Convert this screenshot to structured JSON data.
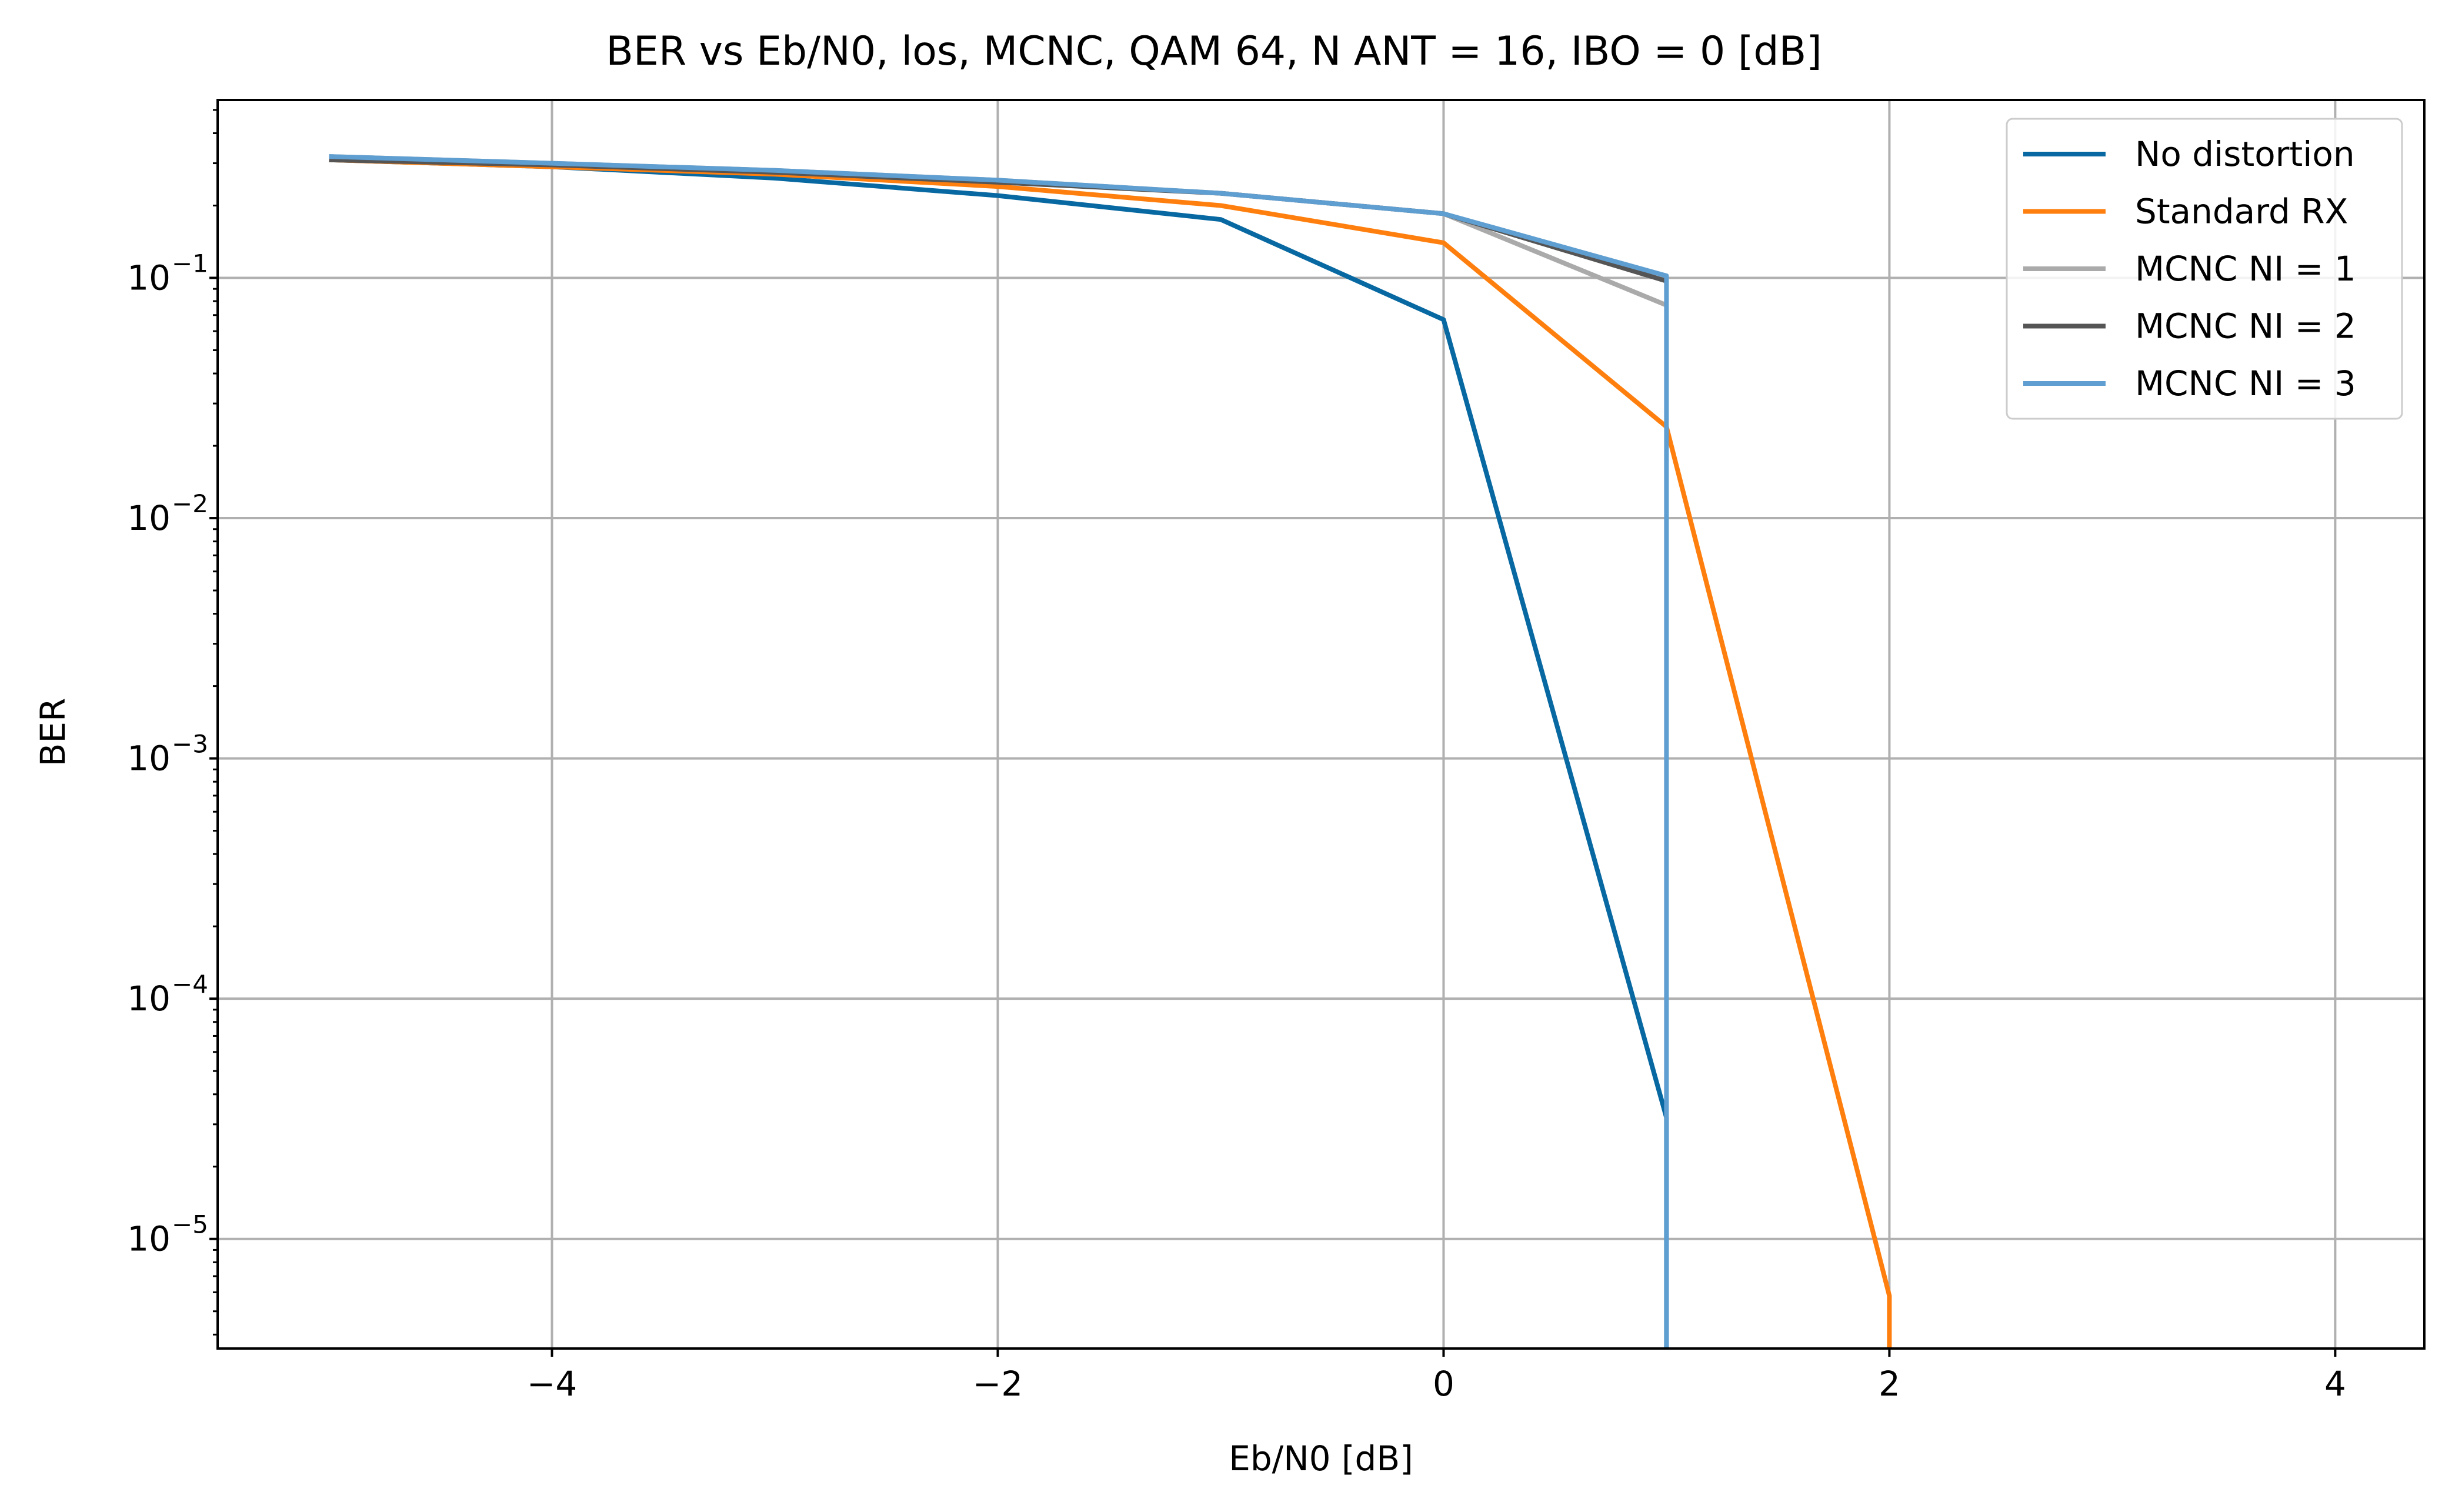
{
  "chart_data": {
    "type": "line",
    "title": "BER vs Eb/N0, los, MCNC, QAM 64, N ANT = 16, IBO = 0 [dB]",
    "xlabel": "Eb/N0 [dB]",
    "ylabel": "BER",
    "xlim": [
      -5.5,
      4.4
    ],
    "ylim": [
      3.5e-06,
      0.55
    ],
    "yscale": "log",
    "grid": true,
    "legend_position": "top-right",
    "x_ticks": [
      {
        "value": -4,
        "label": "−4"
      },
      {
        "value": -2,
        "label": "−2"
      },
      {
        "value": 0,
        "label": "0"
      },
      {
        "value": 2,
        "label": "2"
      },
      {
        "value": 4,
        "label": "4"
      }
    ],
    "y_ticks": [
      {
        "value": 0.1,
        "base": "10",
        "exp": "−1"
      },
      {
        "value": 0.01,
        "base": "10",
        "exp": "−2"
      },
      {
        "value": 0.001,
        "base": "10",
        "exp": "−3"
      },
      {
        "value": 0.0001,
        "base": "10",
        "exp": "−4"
      },
      {
        "value": 1e-05,
        "base": "10",
        "exp": "−5"
      }
    ],
    "series": [
      {
        "name": "No distortion",
        "color": "#0868a1",
        "x": [
          -5,
          -4,
          -3,
          -2,
          -1,
          0,
          1,
          1
        ],
        "y": [
          0.31,
          0.29,
          0.26,
          0.22,
          0.175,
          0.067,
          3.2e-05,
          3.5e-06
        ]
      },
      {
        "name": "Standard RX",
        "color": "#ff7f0e",
        "x": [
          -5,
          -4,
          -3,
          -2,
          -1,
          0,
          1,
          2,
          2
        ],
        "y": [
          0.31,
          0.29,
          0.27,
          0.24,
          0.2,
          0.14,
          0.024,
          5.8e-06,
          3.5e-06
        ]
      },
      {
        "name": "MCNC NI = 1",
        "color": "#aaaaaa",
        "x": [
          -5,
          -4,
          -3,
          -2,
          -1,
          0,
          1
        ],
        "y": [
          0.32,
          0.3,
          0.28,
          0.255,
          0.225,
          0.185,
          0.077
        ]
      },
      {
        "name": "MCNC NI = 2",
        "color": "#555555",
        "x": [
          -5,
          -4,
          -3,
          -2,
          -1,
          0,
          1
        ],
        "y": [
          0.31,
          0.295,
          0.275,
          0.25,
          0.225,
          0.185,
          0.097
        ]
      },
      {
        "name": "MCNC NI = 3",
        "color": "#5f9ed1",
        "x": [
          -5,
          -4,
          -3,
          -2,
          -1,
          0,
          1,
          1
        ],
        "y": [
          0.32,
          0.3,
          0.28,
          0.255,
          0.225,
          0.185,
          0.102,
          3.5e-06
        ]
      }
    ]
  }
}
